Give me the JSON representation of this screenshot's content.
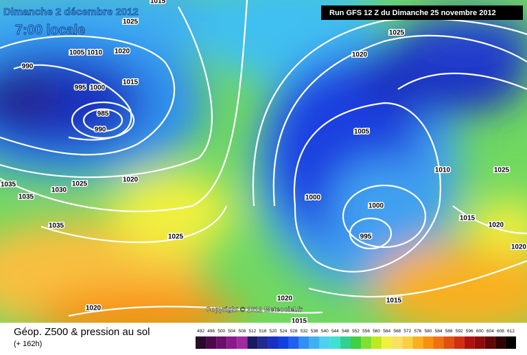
{
  "header": {
    "date": "Dimanche 2 décembre 2012",
    "time": "7:00 locale",
    "run": "Run GFS 12 Z du Dimanche 25 novembre 2012"
  },
  "isobar_labels": [
    "1015",
    "1025",
    "1020",
    "1005",
    "1010",
    "990",
    "995",
    "1000",
    "1015",
    "985",
    "990",
    "1035",
    "1030",
    "1025",
    "1020",
    "1035",
    "1035",
    "1025",
    "1020",
    "1025",
    "1020",
    "1005",
    "1010",
    "1025",
    "1000",
    "1000",
    "995",
    "1015",
    "1020",
    "1020",
    "1020",
    "1015",
    "1015"
  ],
  "copyright": "Copyright © 2012 Meteociel.fr",
  "legend": {
    "title": "Géop. Z500 & pression au sol",
    "subtitle": "(+ 162h)",
    "values": [
      492,
      496,
      500,
      504,
      508,
      512,
      516,
      520,
      524,
      528,
      532,
      536,
      540,
      544,
      548,
      552,
      556,
      560,
      564,
      568,
      572,
      576,
      580,
      584,
      588,
      592,
      596,
      600,
      604,
      608,
      612
    ],
    "colors": [
      "#2a0a2a",
      "#4a0a4a",
      "#6a106a",
      "#8a1a8a",
      "#a02aa0",
      "#1a1a60",
      "#202a90",
      "#1a30c0",
      "#1040e0",
      "#2060f0",
      "#3090f0",
      "#40b0f0",
      "#50d0f0",
      "#40e0d0",
      "#30d090",
      "#40d040",
      "#80e030",
      "#c0e820",
      "#f0f040",
      "#f8e060",
      "#f8d040",
      "#f8b020",
      "#f89010",
      "#f07010",
      "#e05010",
      "#d03010",
      "#b01010",
      "#900a0a",
      "#600808",
      "#300404",
      "#000000"
    ]
  }
}
